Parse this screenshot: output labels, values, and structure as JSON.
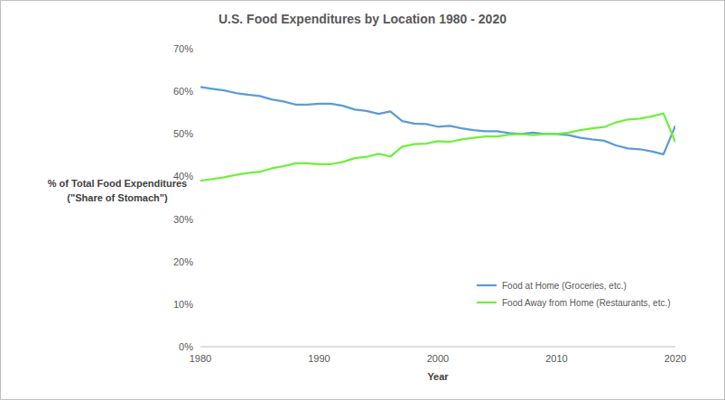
{
  "chart_data": {
    "type": "line",
    "title": "U.S. Food Expenditures by Location 1980 - 2020",
    "x_label": "Year",
    "y_label": [
      "% of Total Food Expenditures",
      "(\"Share of Stomach\")"
    ],
    "x": [
      1980,
      1981,
      1982,
      1983,
      1984,
      1985,
      1986,
      1987,
      1988,
      1989,
      1990,
      1991,
      1992,
      1993,
      1994,
      1995,
      1996,
      1997,
      1998,
      1999,
      2000,
      2001,
      2002,
      2003,
      2004,
      2005,
      2006,
      2007,
      2008,
      2009,
      2010,
      2011,
      2012,
      2013,
      2014,
      2015,
      2016,
      2017,
      2018,
      2019,
      2020
    ],
    "series": [
      {
        "name": "Food at Home (Groceries, etc.)",
        "color": "#5b9bd5",
        "values": [
          61.0,
          60.6,
          60.2,
          59.6,
          59.2,
          58.9,
          58.1,
          57.6,
          56.9,
          56.9,
          57.1,
          57.1,
          56.6,
          55.7,
          55.4,
          54.7,
          55.3,
          53.0,
          52.4,
          52.3,
          51.7,
          51.9,
          51.3,
          50.9,
          50.6,
          50.6,
          50.2,
          50.0,
          50.3,
          50.0,
          50.0,
          49.7,
          49.1,
          48.7,
          48.4,
          47.3,
          46.6,
          46.4,
          45.9,
          45.2,
          51.9
        ]
      },
      {
        "name": "Food Away from Home (Restaurants, etc.)",
        "color": "#6ef03c",
        "values": [
          39.0,
          39.4,
          39.8,
          40.4,
          40.8,
          41.1,
          41.9,
          42.4,
          43.1,
          43.1,
          42.9,
          42.9,
          43.4,
          44.3,
          44.6,
          45.3,
          44.7,
          47.0,
          47.6,
          47.7,
          48.3,
          48.1,
          48.7,
          49.1,
          49.4,
          49.4,
          49.8,
          50.0,
          49.7,
          50.0,
          50.0,
          50.3,
          50.9,
          51.3,
          51.6,
          52.7,
          53.4,
          53.6,
          54.1,
          54.8,
          48.1
        ]
      }
    ],
    "xlim": [
      1980,
      2020
    ],
    "xticks": [
      1980,
      1990,
      2000,
      2010,
      2020
    ],
    "ylim": [
      0,
      70
    ],
    "yticks": [
      {
        "value": 0,
        "label": "0%"
      },
      {
        "value": 10,
        "label": "10%"
      },
      {
        "value": 20,
        "label": "20%"
      },
      {
        "value": 30,
        "label": "30%"
      },
      {
        "value": 40,
        "label": "40%"
      },
      {
        "value": 50,
        "label": "50%"
      },
      {
        "value": 60,
        "label": "60%"
      },
      {
        "value": 70,
        "label": "70%"
      }
    ],
    "grid": false,
    "legend": "lower right"
  }
}
